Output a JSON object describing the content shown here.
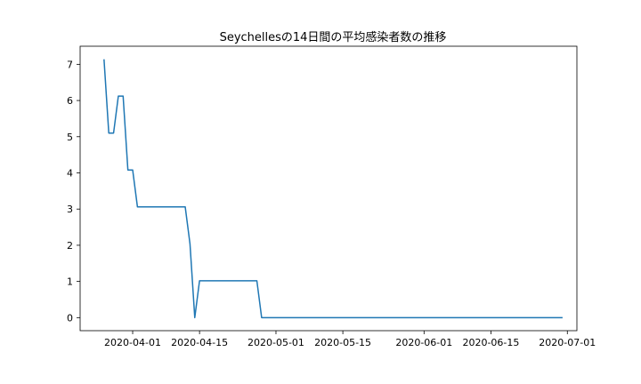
{
  "chart_data": {
    "type": "line",
    "title": "Seychellesの14日間の平均感染者数の推移",
    "xlabel": "",
    "ylabel": "",
    "x_axis_type": "date",
    "xlim": [
      "2020-03-21",
      "2020-07-03"
    ],
    "ylim": [
      -0.36,
      7.5
    ],
    "grid": false,
    "legend": "none",
    "line_color": "#1f77b4",
    "x_ticks": [
      {
        "date": "2020-04-01",
        "label": "2020-04-01"
      },
      {
        "date": "2020-04-15",
        "label": "2020-04-15"
      },
      {
        "date": "2020-05-01",
        "label": "2020-05-01"
      },
      {
        "date": "2020-05-15",
        "label": "2020-05-15"
      },
      {
        "date": "2020-06-01",
        "label": "2020-06-01"
      },
      {
        "date": "2020-06-15",
        "label": "2020-06-15"
      },
      {
        "date": "2020-07-01",
        "label": "2020-07-01"
      }
    ],
    "y_ticks": [
      {
        "value": 0,
        "label": "0"
      },
      {
        "value": 1,
        "label": "1"
      },
      {
        "value": 2,
        "label": "2"
      },
      {
        "value": 3,
        "label": "3"
      },
      {
        "value": 4,
        "label": "4"
      },
      {
        "value": 5,
        "label": "5"
      },
      {
        "value": 6,
        "label": "6"
      },
      {
        "value": 7,
        "label": "7"
      }
    ],
    "series": [
      {
        "x": [
          "2020-03-26",
          "2020-03-27",
          "2020-03-28",
          "2020-03-29",
          "2020-03-30",
          "2020-03-31",
          "2020-04-01",
          "2020-04-02",
          "2020-04-03",
          "2020-04-12",
          "2020-04-13",
          "2020-04-14",
          "2020-04-15",
          "2020-04-27",
          "2020-04-28",
          "2020-06-30"
        ],
        "y": [
          7.14,
          5.1,
          5.1,
          6.12,
          6.12,
          4.08,
          4.08,
          3.06,
          3.06,
          3.06,
          2.04,
          0.0,
          1.02,
          1.02,
          0.0,
          0.0
        ]
      }
    ]
  }
}
